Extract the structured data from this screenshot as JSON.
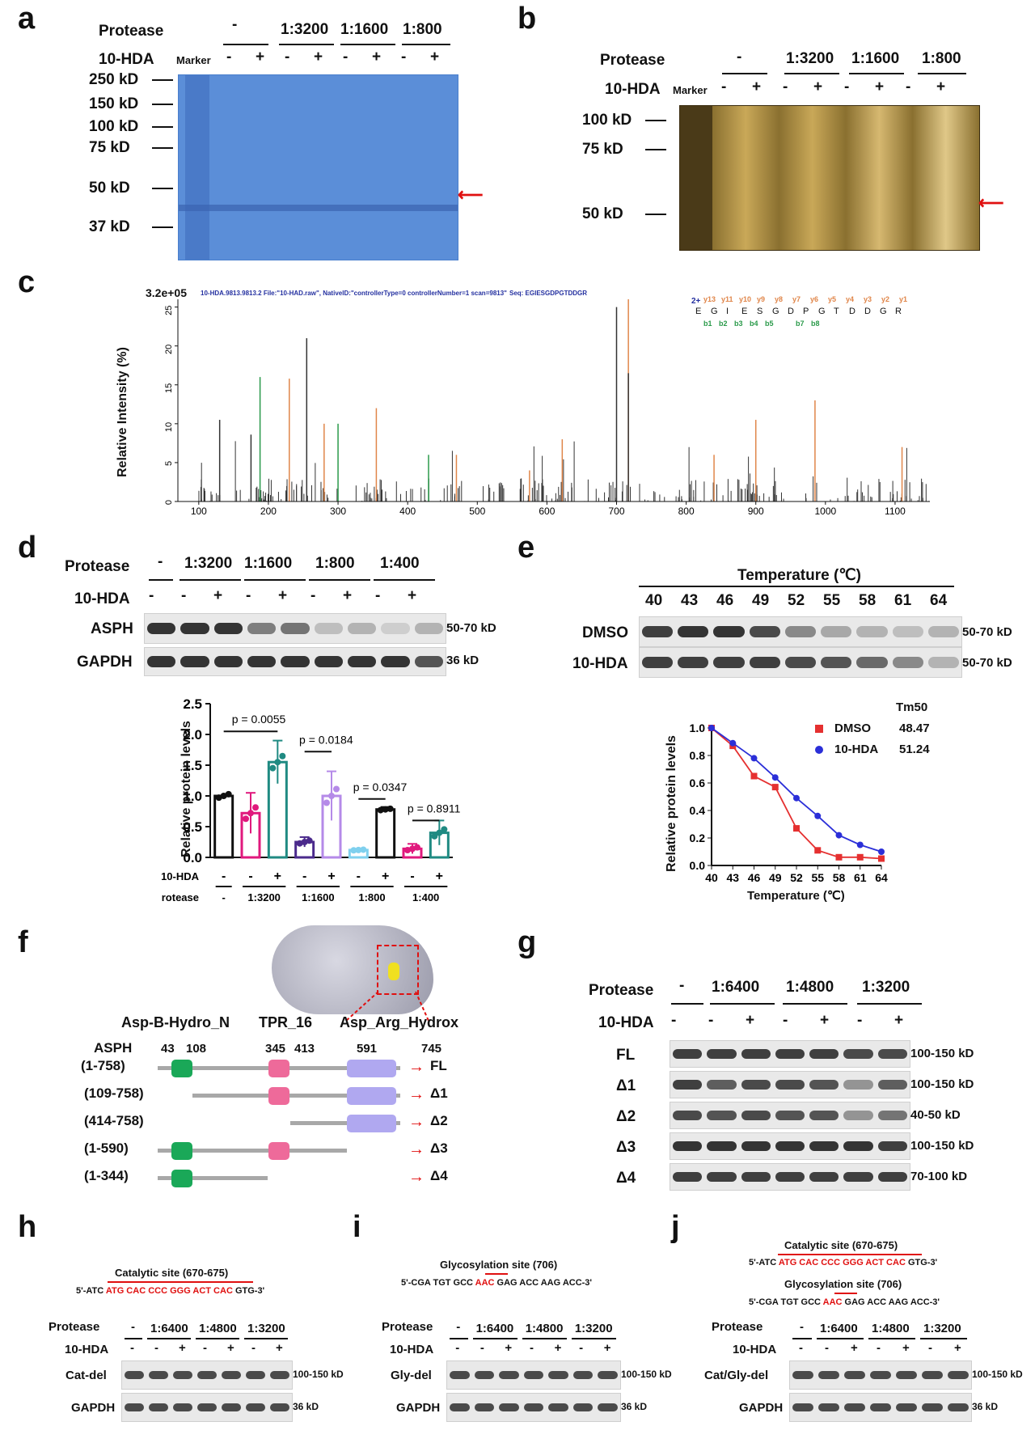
{
  "panels": {
    "a": "a",
    "b": "b",
    "c": "c",
    "d": "d",
    "e": "e",
    "f": "f",
    "g": "g",
    "h": "h",
    "i": "i",
    "j": "j"
  },
  "common": {
    "protease": "Protease",
    "hda": "10-HDA",
    "marker": "Marker",
    "minus": "-",
    "plus": "+",
    "gapdh": "GAPDH",
    "kd36": "36 kD",
    "kd5070": "50-70 kD",
    "kd100150": "100-150 kD"
  },
  "panel_a": {
    "ratios": [
      "1:3200",
      "1:1600",
      "1:800"
    ],
    "markers": [
      "250 kD",
      "150 kD",
      "100 kD",
      "75 kD",
      "50 kD",
      "37 kD"
    ]
  },
  "panel_b": {
    "ratios": [
      "1:3200",
      "1:1600",
      "1:800"
    ],
    "markers": [
      "100 kD",
      "75 kD",
      "50 kD"
    ]
  },
  "panel_c": {
    "scale": "3.2e+05",
    "header": "10-HDA.9813.9813.2 File:\"10-HAD.raw\", NativeID:\"controllerType=0 controllerNumber=1 scan=9813\"",
    "seq_label": "Seq: EGIESGDPGTDDGR",
    "charge": "2+",
    "y_ions": [
      "y13",
      "y11",
      "y10",
      "y9",
      "y8",
      "y7",
      "y6",
      "y5",
      "y4",
      "y3",
      "y2",
      "y1"
    ],
    "b_ions": [
      "b1",
      "b2",
      "b3",
      "b4",
      "b5",
      "b7",
      "b8"
    ],
    "residues": [
      "E",
      "G",
      "I",
      "E",
      "S",
      "G",
      "D",
      "P",
      "G",
      "T",
      "D",
      "D",
      "G",
      "R"
    ]
  },
  "panel_d": {
    "ratios": [
      "1:3200",
      "1:1600",
      "1:800",
      "1:400"
    ],
    "asph": "ASPH",
    "pvalues": [
      "p = 0.0055",
      "p = 0.0184",
      "p = 0.0347",
      "p = 0.8911"
    ]
  },
  "panel_e": {
    "temp_title": "Temperature (℃)",
    "temps": [
      "40",
      "43",
      "46",
      "49",
      "52",
      "55",
      "58",
      "61",
      "64"
    ],
    "dmso": "DMSO",
    "hda": "10-HDA",
    "tm_title": "Tm50",
    "tm_dmso": "48.47",
    "tm_hda": "51.24",
    "xlabel": "Temperature (℃)",
    "ylabel": "Relative protein levels"
  },
  "panel_f": {
    "domains": [
      "Asp-B-Hydro_N",
      "TPR_16",
      "Asp_Arg_Hydrox"
    ],
    "asph": "ASPH",
    "positions": [
      "43",
      "108",
      "345",
      "413",
      "591",
      "745"
    ],
    "ranges": [
      "(1-758)",
      "(109-758)",
      "(414-758)",
      "(1-590)",
      "(1-344)"
    ],
    "constructs": [
      "FL",
      "Δ1",
      "Δ2",
      "Δ3",
      "Δ4"
    ]
  },
  "panel_g": {
    "ratios": [
      "1:6400",
      "1:4800",
      "1:3200"
    ],
    "rows": [
      "FL",
      "Δ1",
      "Δ2",
      "Δ3",
      "Δ4"
    ],
    "sizes": [
      "100-150 kD",
      "100-150 kD",
      "40-50 kD",
      "100-150 kD",
      "70-100 kD"
    ]
  },
  "panel_h": {
    "site": "Catalytic site (670-675)",
    "seq_pre": "5'-ATC ",
    "seq_mut": "ATG CAC CCC GGG ACT CAC",
    "seq_post": " GTG-3'",
    "row": "Cat-del"
  },
  "panel_i": {
    "site": "Glycosylation site (706)",
    "seq_pre": "5'-CGA TGT GCC ",
    "seq_mut": "AAC",
    "seq_post": " GAG ACC AAG ACC-3'",
    "row": "Gly-del"
  },
  "panel_j": {
    "row": "Cat/Gly-del"
  },
  "ratios_hij": [
    "1:6400",
    "1:4800",
    "1:3200"
  ],
  "chart_data": [
    {
      "type": "bar",
      "title": "",
      "ylabel": "Relative protein levels",
      "ylim": [
        0,
        2.5
      ],
      "categories": [
        "-/-",
        "1:3200 -",
        "1:3200 +",
        "1:1600 -",
        "1:1600 +",
        "1:800 -",
        "1:800 +",
        "1:400 -",
        "1:400 +"
      ],
      "x_row1_label": "10-HDA",
      "x_row2_label": "Protease",
      "x_row1": [
        "-",
        "-",
        "+",
        "-",
        "+",
        "-",
        "+",
        "-",
        "+"
      ],
      "x_row2": [
        "-",
        "1:3200",
        "1:1600",
        "1:800",
        "1:400"
      ],
      "values": [
        1.0,
        0.72,
        1.55,
        0.25,
        1.0,
        0.12,
        0.78,
        0.14,
        0.4
      ],
      "errors": [
        0.0,
        0.33,
        0.35,
        0.08,
        0.4,
        0.02,
        0.04,
        0.08,
        0.2
      ],
      "colors": [
        "#111111",
        "#e0197d",
        "#1f8a82",
        "#4b2a8c",
        "#b58ae8",
        "#7fd0ee",
        "#111111",
        "#e0197d",
        "#1f8a82"
      ],
      "pvalues": [
        "p = 0.0055",
        "p = 0.0184",
        "p = 0.0347",
        "p = 0.8911"
      ],
      "yticks": [
        0.0,
        0.5,
        1.0,
        1.5,
        2.0,
        2.5
      ]
    },
    {
      "type": "line",
      "xlabel": "Temperature (℃)",
      "ylabel": "Relative protein levels",
      "ylim": [
        0,
        1.0
      ],
      "x": [
        40,
        43,
        46,
        49,
        52,
        55,
        58,
        61,
        64
      ],
      "series": [
        {
          "name": "DMSO",
          "color": "#e53030",
          "values": [
            1.0,
            0.87,
            0.65,
            0.57,
            0.27,
            0.11,
            0.06,
            0.06,
            0.05
          ]
        },
        {
          "name": "10-HDA",
          "color": "#2b2fd8",
          "values": [
            1.0,
            0.89,
            0.78,
            0.64,
            0.49,
            0.36,
            0.22,
            0.15,
            0.1
          ]
        }
      ],
      "yticks": [
        0.0,
        0.2,
        0.4,
        0.6,
        0.8,
        1.0
      ]
    }
  ]
}
